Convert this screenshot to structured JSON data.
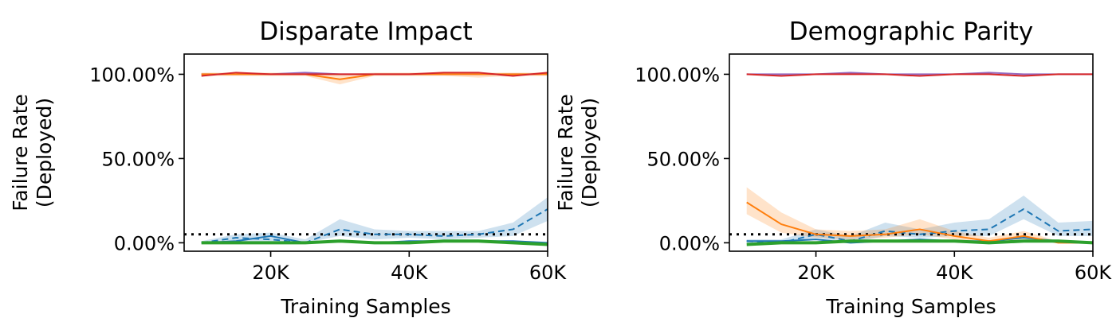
{
  "chart_data": [
    {
      "type": "line",
      "title": "Disparate Impact",
      "xlabel": "Training Samples",
      "ylabel": [
        "Failure Rate",
        "(Deployed)"
      ],
      "x": [
        10000,
        15000,
        20000,
        25000,
        30000,
        35000,
        40000,
        45000,
        50000,
        55000,
        60000
      ],
      "xlim": [
        7500,
        60000
      ],
      "ylim": [
        -0.05,
        1.12
      ],
      "xticks": [
        20000,
        40000,
        60000
      ],
      "xtick_labels": [
        "20K",
        "40K",
        "60K"
      ],
      "yticks": [
        0.0,
        0.5,
        1.0
      ],
      "ytick_labels": [
        "0.00%",
        "50.00%",
        "100.00%"
      ],
      "threshold": 0.05,
      "grid": false,
      "series": [
        {
          "color": "#1f77b4",
          "style": "dashed",
          "width": 2,
          "values": [
            0.0,
            0.03,
            0.02,
            0.0,
            0.08,
            0.05,
            0.05,
            0.04,
            0.05,
            0.08,
            0.2
          ],
          "band_low": [
            0.0,
            0.01,
            0.0,
            0.0,
            0.04,
            0.02,
            0.03,
            0.02,
            0.03,
            0.04,
            0.13
          ],
          "band_high": [
            0.01,
            0.05,
            0.06,
            0.02,
            0.14,
            0.08,
            0.07,
            0.07,
            0.07,
            0.12,
            0.27
          ],
          "band_color": "#1f77b4"
        },
        {
          "color": "#1f77b4",
          "style": "solid",
          "width": 2,
          "values": [
            0.0,
            0.01,
            0.04,
            0.0,
            0.01,
            0.0,
            0.01,
            0.01,
            0.01,
            0.01,
            0.0
          ]
        },
        {
          "color": "#2ca02c",
          "style": "solid",
          "width": 4,
          "values": [
            0.0,
            0.0,
            0.0,
            0.0,
            0.01,
            0.0,
            0.0,
            0.01,
            0.01,
            0.0,
            -0.01
          ]
        },
        {
          "color": "#9467bd",
          "style": "solid",
          "width": 2,
          "values": [
            1.0,
            1.0,
            1.0,
            1.01,
            1.0,
            1.0,
            1.0,
            1.0,
            1.0,
            1.0,
            1.0
          ]
        },
        {
          "color": "#ff7f0e",
          "style": "solid",
          "width": 2,
          "values": [
            1.0,
            1.0,
            1.0,
            1.0,
            0.97,
            1.0,
            1.0,
            1.0,
            1.0,
            1.0,
            1.0
          ],
          "band_low": [
            0.99,
            0.99,
            0.99,
            0.99,
            0.94,
            0.99,
            0.99,
            0.99,
            0.98,
            0.99,
            0.99
          ],
          "band_high": [
            1.01,
            1.01,
            1.01,
            1.01,
            1.0,
            1.01,
            1.01,
            1.01,
            1.01,
            1.01,
            1.01
          ],
          "band_color": "#ff7f0e"
        },
        {
          "color": "#d62728",
          "style": "solid",
          "width": 2,
          "values": [
            0.99,
            1.01,
            1.0,
            1.0,
            1.0,
            1.0,
            1.0,
            1.01,
            1.01,
            0.99,
            1.01
          ]
        }
      ]
    },
    {
      "type": "line",
      "title": "Demographic Parity",
      "xlabel": "Training Samples",
      "ylabel": [
        "Failure Rate",
        "(Deployed)"
      ],
      "x": [
        10000,
        15000,
        20000,
        25000,
        30000,
        35000,
        40000,
        45000,
        50000,
        55000,
        60000
      ],
      "xlim": [
        7500,
        60000
      ],
      "ylim": [
        -0.05,
        1.12
      ],
      "xticks": [
        20000,
        40000,
        60000
      ],
      "xtick_labels": [
        "20K",
        "40K",
        "60K"
      ],
      "yticks": [
        0.0,
        0.5,
        1.0
      ],
      "ytick_labels": [
        "0.00%",
        "50.00%",
        "100.00%"
      ],
      "threshold": 0.05,
      "grid": false,
      "series": [
        {
          "color": "#1f77b4",
          "style": "dashed",
          "width": 2,
          "values": [
            0.01,
            0.0,
            0.05,
            0.01,
            0.07,
            0.05,
            0.07,
            0.08,
            0.2,
            0.07,
            0.08
          ],
          "band_low": [
            0.0,
            0.0,
            0.03,
            0.0,
            0.04,
            0.03,
            0.04,
            0.04,
            0.14,
            0.04,
            0.04
          ],
          "band_high": [
            0.02,
            0.02,
            0.08,
            0.04,
            0.12,
            0.08,
            0.12,
            0.14,
            0.28,
            0.12,
            0.13
          ],
          "band_color": "#1f77b4"
        },
        {
          "color": "#1f77b4",
          "style": "solid",
          "width": 2,
          "values": [
            0.01,
            0.01,
            0.02,
            0.0,
            0.01,
            0.02,
            0.01,
            0.01,
            0.03,
            0.01,
            0.0
          ]
        },
        {
          "color": "#ff7f0e",
          "style": "solid",
          "width": 2,
          "values": [
            0.24,
            0.11,
            0.05,
            0.04,
            0.05,
            0.08,
            0.04,
            0.01,
            0.04,
            0.0,
            0.0
          ],
          "band_low": [
            0.17,
            0.06,
            0.03,
            0.02,
            0.03,
            0.05,
            0.02,
            0.0,
            0.02,
            0.0,
            0.0
          ],
          "band_high": [
            0.33,
            0.18,
            0.08,
            0.07,
            0.08,
            0.14,
            0.07,
            0.03,
            0.07,
            0.01,
            0.01
          ],
          "band_color": "#ff7f0e"
        },
        {
          "color": "#2ca02c",
          "style": "solid",
          "width": 4,
          "values": [
            -0.01,
            0.0,
            0.0,
            0.01,
            0.01,
            0.01,
            0.01,
            0.0,
            0.01,
            0.01,
            0.0
          ]
        },
        {
          "color": "#9467bd",
          "style": "solid",
          "width": 2,
          "values": [
            1.0,
            1.0,
            1.0,
            1.01,
            1.0,
            1.0,
            1.0,
            1.01,
            1.0,
            1.0,
            1.0
          ]
        },
        {
          "color": "#d62728",
          "style": "solid",
          "width": 2,
          "values": [
            1.0,
            0.99,
            1.0,
            1.0,
            1.0,
            0.99,
            1.0,
            1.0,
            0.99,
            1.0,
            1.0
          ]
        }
      ]
    }
  ]
}
